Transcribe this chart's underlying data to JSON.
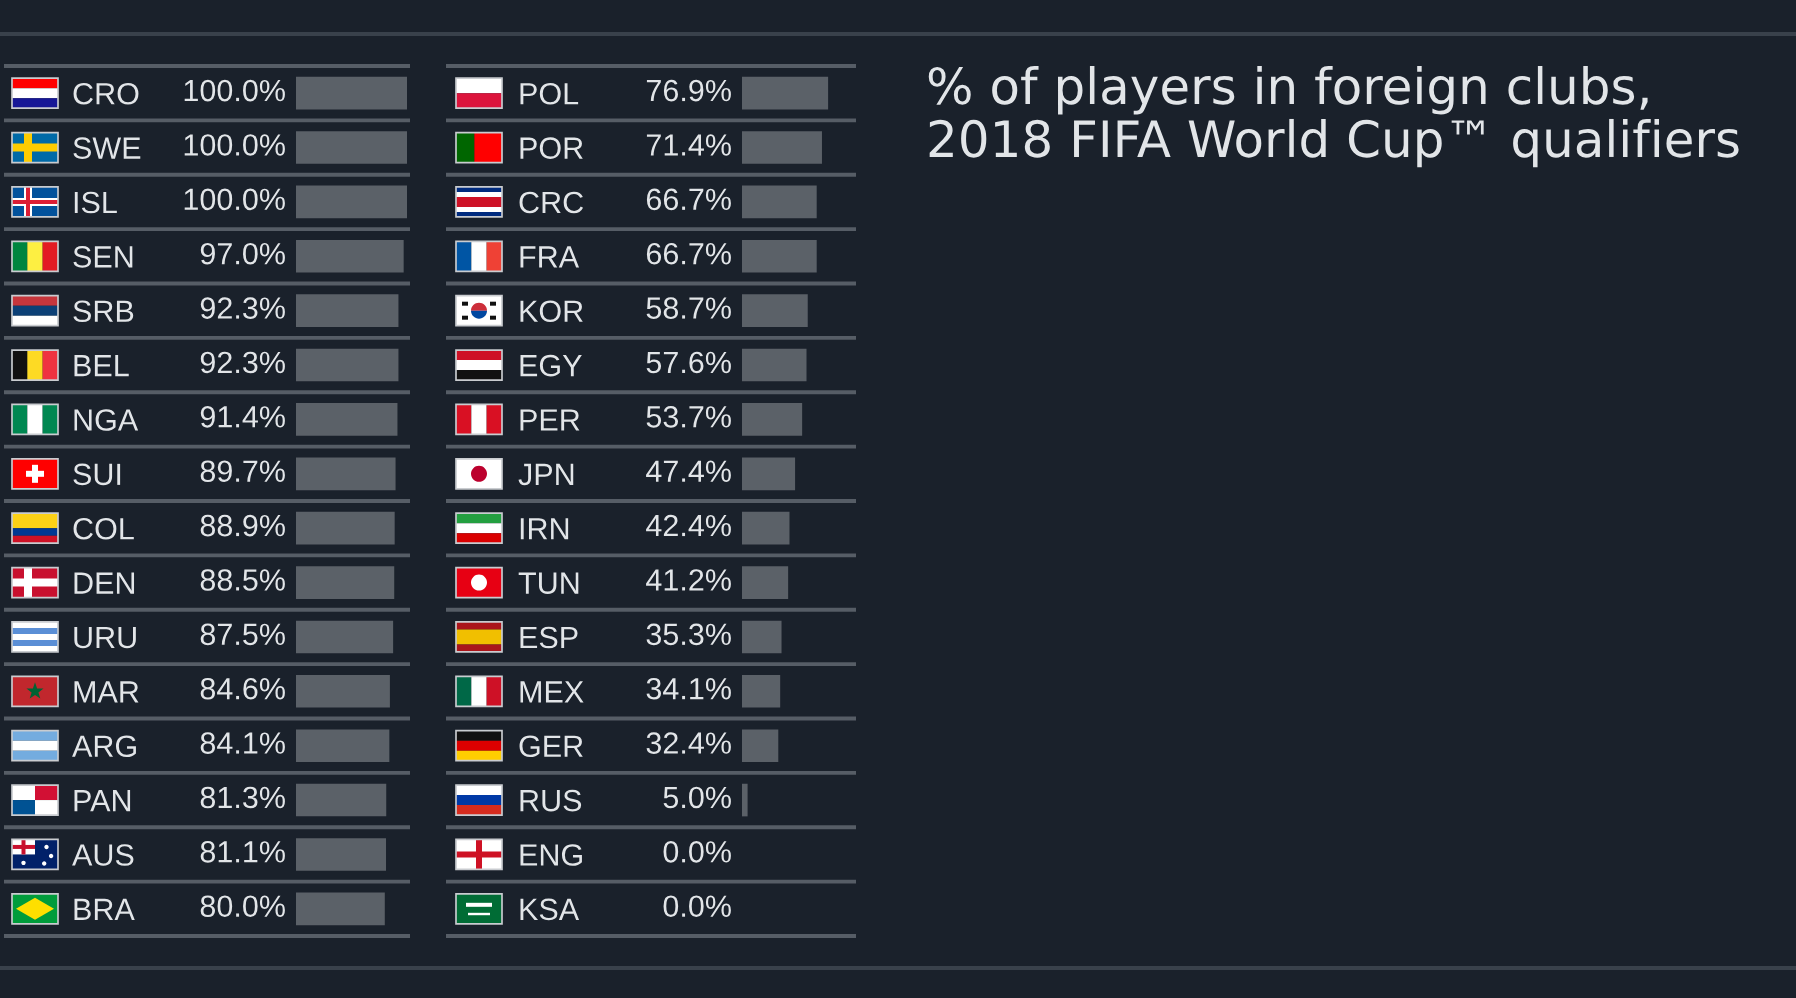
{
  "chart_data": [
    {
      "type": "bar",
      "orientation": "horizontal",
      "categories": [
        "CRO",
        "SWE",
        "ISL",
        "SEN",
        "SRB",
        "BEL",
        "NGA",
        "SUI",
        "COL",
        "DEN",
        "URU",
        "MAR",
        "ARG",
        "PAN",
        "AUS",
        "BRA"
      ],
      "values": [
        100.0,
        100.0,
        100.0,
        97.0,
        92.3,
        92.3,
        91.4,
        89.7,
        88.9,
        88.5,
        87.5,
        84.6,
        84.1,
        81.3,
        81.1,
        80.0
      ],
      "value_labels": [
        "100.0%",
        "100.0%",
        "100.0%",
        "97.0%",
        "92.3%",
        "92.3%",
        "91.4%",
        "89.7%",
        "88.9%",
        "88.5%",
        "87.5%",
        "84.6%",
        "84.1%",
        "81.3%",
        "81.1%",
        "80.0%"
      ],
      "color": "#5b6168",
      "xlim": [
        0,
        100
      ],
      "tick_labels": "y"
    },
    {
      "type": "bar",
      "orientation": "horizontal",
      "categories": [
        "POL",
        "POR",
        "CRC",
        "FRA",
        "KOR",
        "EGY",
        "PER",
        "JPN",
        "IRN",
        "TUN",
        "ESP",
        "MEX",
        "GER",
        "RUS",
        "ENG",
        "KSA"
      ],
      "values": [
        76.9,
        71.4,
        66.7,
        66.7,
        58.7,
        57.6,
        53.7,
        47.4,
        42.4,
        41.2,
        35.3,
        34.1,
        32.4,
        5.0,
        0.0,
        0.0
      ],
      "value_labels": [
        "76.9%",
        "71.4%",
        "66.7%",
        "66.7%",
        "58.7%",
        "57.6%",
        "53.7%",
        "47.4%",
        "42.4%",
        "41.2%",
        "35.3%",
        "34.1%",
        "32.4%",
        "5.0%",
        "0.0%",
        "0.0%"
      ],
      "color": "#5b6168",
      "xlim": [
        0,
        100
      ],
      "tick_labels": "y"
    },
    {
      "type": "other",
      "title": "% of players in foreign clubs,\n2018 FIFA World Cup™ qualifiers"
    }
  ]
}
